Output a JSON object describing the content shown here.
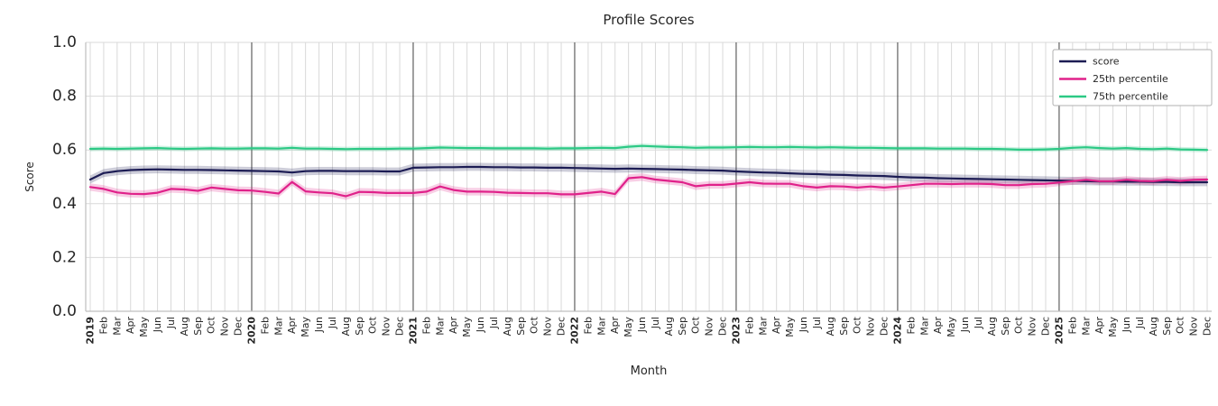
{
  "chart_data": {
    "type": "line",
    "title": "Profile Scores",
    "xlabel": "Month",
    "ylabel": "Score",
    "ylim": [
      0.0,
      1.0
    ],
    "yticks": [
      0.0,
      0.2,
      0.4,
      0.6,
      0.8,
      1.0
    ],
    "grid": true,
    "legend_position": "upper right",
    "colors": {
      "grid": "#d9d9d9",
      "year_line": "#404040",
      "spine": "#bfbfbf",
      "legend_border": "#b0b0b0",
      "text": "#262626"
    },
    "x_labels": [
      "2019",
      "Feb",
      "Mar",
      "Apr",
      "May",
      "Jun",
      "Jul",
      "Aug",
      "Sep",
      "Oct",
      "Nov",
      "Dec",
      "2020",
      "Feb",
      "Mar",
      "Apr",
      "May",
      "Jun",
      "Jul",
      "Aug",
      "Sep",
      "Oct",
      "Nov",
      "Dec",
      "2021",
      "Feb",
      "Mar",
      "Apr",
      "May",
      "Jun",
      "Jul",
      "Aug",
      "Sep",
      "Oct",
      "Nov",
      "Dec",
      "2022",
      "Feb",
      "Mar",
      "Apr",
      "May",
      "Jun",
      "Jul",
      "Aug",
      "Sep",
      "Oct",
      "Nov",
      "Dec",
      "2023",
      "Feb",
      "Mar",
      "Apr",
      "May",
      "Jun",
      "Jul",
      "Aug",
      "Sep",
      "Oct",
      "Nov",
      "Dec",
      "2024",
      "Feb",
      "Mar",
      "Apr",
      "May",
      "Jun",
      "Jul",
      "Aug",
      "Sep",
      "Oct",
      "Nov",
      "Dec",
      "2025",
      "Feb",
      "Mar",
      "Apr",
      "May",
      "Jun",
      "Jul",
      "Aug",
      "Sep",
      "Oct",
      "Nov",
      "Dec"
    ],
    "series": [
      {
        "name": "score",
        "color": "#1c1c54",
        "band_delta": 0.015,
        "values": [
          0.49,
          0.514,
          0.521,
          0.525,
          0.527,
          0.528,
          0.527,
          0.526,
          0.526,
          0.525,
          0.524,
          0.523,
          0.522,
          0.521,
          0.52,
          0.516,
          0.521,
          0.522,
          0.522,
          0.521,
          0.521,
          0.521,
          0.52,
          0.52,
          0.534,
          0.535,
          0.536,
          0.536,
          0.537,
          0.537,
          0.536,
          0.536,
          0.535,
          0.535,
          0.534,
          0.534,
          0.533,
          0.532,
          0.531,
          0.53,
          0.531,
          0.53,
          0.529,
          0.528,
          0.527,
          0.525,
          0.524,
          0.523,
          0.52,
          0.518,
          0.516,
          0.515,
          0.513,
          0.511,
          0.51,
          0.508,
          0.507,
          0.505,
          0.504,
          0.503,
          0.5,
          0.498,
          0.497,
          0.495,
          0.494,
          0.493,
          0.492,
          0.491,
          0.49,
          0.489,
          0.488,
          0.487,
          0.486,
          0.485,
          0.484,
          0.483,
          0.483,
          0.482,
          0.482,
          0.481,
          0.481,
          0.48,
          0.48,
          0.48
        ]
      },
      {
        "name": "25th percentile",
        "color": "#e0218a",
        "band_delta": 0.014,
        "values": [
          0.462,
          0.455,
          0.442,
          0.437,
          0.436,
          0.441,
          0.455,
          0.453,
          0.448,
          0.46,
          0.455,
          0.45,
          0.449,
          0.444,
          0.438,
          0.481,
          0.446,
          0.442,
          0.439,
          0.428,
          0.444,
          0.443,
          0.44,
          0.44,
          0.44,
          0.445,
          0.464,
          0.451,
          0.445,
          0.445,
          0.444,
          0.441,
          0.44,
          0.439,
          0.439,
          0.435,
          0.435,
          0.44,
          0.445,
          0.436,
          0.495,
          0.499,
          0.49,
          0.485,
          0.48,
          0.465,
          0.47,
          0.47,
          0.475,
          0.48,
          0.475,
          0.474,
          0.474,
          0.465,
          0.46,
          0.465,
          0.464,
          0.46,
          0.464,
          0.46,
          0.464,
          0.469,
          0.474,
          0.474,
          0.473,
          0.474,
          0.474,
          0.473,
          0.469,
          0.469,
          0.473,
          0.474,
          0.479,
          0.484,
          0.489,
          0.484,
          0.484,
          0.489,
          0.485,
          0.484,
          0.489,
          0.485,
          0.489,
          0.49
        ]
      },
      {
        "name": "75th percentile",
        "color": "#2cc985",
        "band_delta": 0.009,
        "values": [
          0.604,
          0.605,
          0.604,
          0.605,
          0.606,
          0.607,
          0.605,
          0.604,
          0.605,
          0.606,
          0.605,
          0.605,
          0.606,
          0.606,
          0.605,
          0.608,
          0.605,
          0.605,
          0.604,
          0.603,
          0.604,
          0.604,
          0.604,
          0.605,
          0.605,
          0.607,
          0.609,
          0.608,
          0.607,
          0.607,
          0.606,
          0.606,
          0.606,
          0.606,
          0.605,
          0.606,
          0.606,
          0.607,
          0.608,
          0.607,
          0.612,
          0.615,
          0.613,
          0.611,
          0.61,
          0.608,
          0.609,
          0.609,
          0.61,
          0.611,
          0.61,
          0.61,
          0.611,
          0.61,
          0.609,
          0.61,
          0.609,
          0.608,
          0.608,
          0.607,
          0.606,
          0.606,
          0.606,
          0.605,
          0.605,
          0.605,
          0.604,
          0.604,
          0.603,
          0.601,
          0.601,
          0.602,
          0.604,
          0.608,
          0.61,
          0.607,
          0.605,
          0.607,
          0.604,
          0.603,
          0.605,
          0.602,
          0.601,
          0.6
        ]
      }
    ]
  }
}
